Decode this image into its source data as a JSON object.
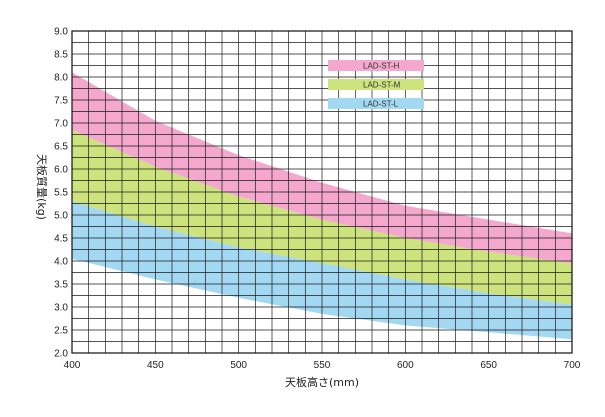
{
  "chart_data": {
    "type": "area",
    "xlabel": "天板高さ(mm)",
    "ylabel": "天板質量(kg)",
    "xlim": [
      400,
      700
    ],
    "ylim": [
      2.0,
      9.0
    ],
    "x_ticks": [
      "400",
      "450",
      "500",
      "550",
      "600",
      "650",
      "700"
    ],
    "y_ticks": [
      "2.0",
      "2.5",
      "3.0",
      "3.5",
      "4.0",
      "4.5",
      "5.0",
      "5.5",
      "6.0",
      "6.5",
      "7.0",
      "7.5",
      "8.0",
      "8.5",
      "9.0"
    ],
    "grid": true,
    "grid_step": {
      "x": 10,
      "y": 0.25
    },
    "legend_position": "top-right",
    "x": [
      400,
      450,
      500,
      550,
      600,
      650,
      700
    ],
    "series": [
      {
        "name": "LAD-ST-H",
        "color": "#f4a8cd",
        "upper": [
          8.1,
          7.05,
          6.3,
          5.7,
          5.2,
          4.9,
          4.6
        ],
        "lower": [
          6.85,
          6.05,
          5.4,
          4.9,
          4.5,
          4.2,
          3.95
        ]
      },
      {
        "name": "LAD-ST-M",
        "color": "#cde37d",
        "upper": [
          6.85,
          6.05,
          5.4,
          4.9,
          4.5,
          4.2,
          3.95
        ],
        "lower": [
          5.3,
          4.75,
          4.3,
          3.95,
          3.6,
          3.3,
          3.05
        ]
      },
      {
        "name": "LAD-ST-L",
        "color": "#a3d8f2",
        "upper": [
          5.3,
          4.75,
          4.3,
          3.95,
          3.6,
          3.3,
          3.05
        ],
        "lower": [
          4.05,
          3.6,
          3.2,
          2.85,
          2.6,
          2.45,
          2.3
        ]
      }
    ]
  }
}
